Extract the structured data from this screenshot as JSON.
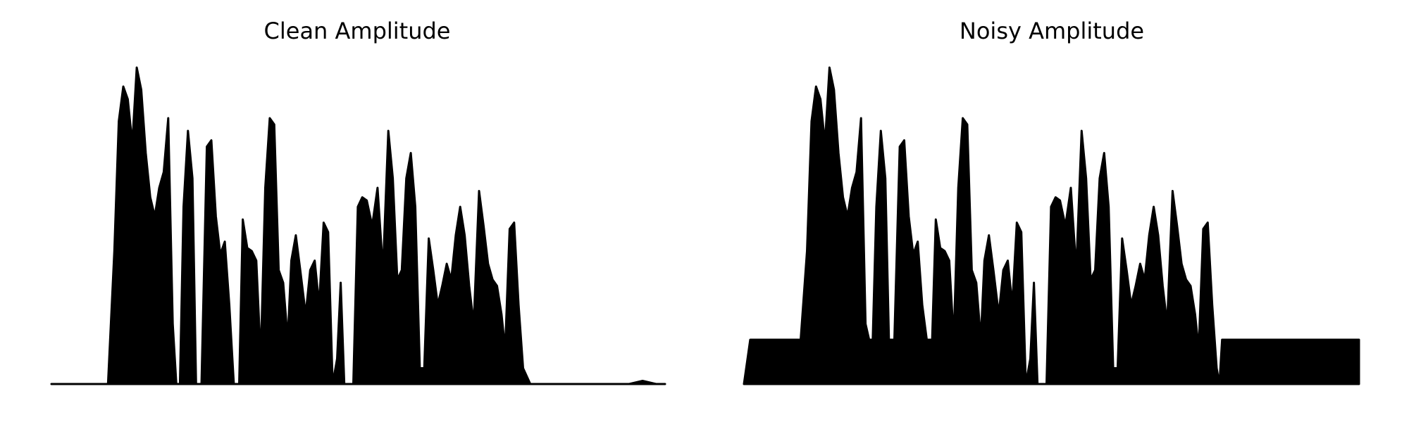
{
  "chart_data": [
    {
      "type": "area",
      "title": "Clean Amplitude",
      "color": "#000000",
      "xlim": [
        0,
        683
      ],
      "ylim": [
        0,
        1
      ],
      "x": [
        0,
        63,
        70,
        75,
        80,
        85,
        90,
        95,
        100,
        105,
        110,
        115,
        120,
        125,
        130,
        135,
        139,
        143,
        147,
        152,
        157,
        161,
        167,
        173,
        178,
        183,
        188,
        193,
        198,
        203,
        209,
        213,
        218,
        223,
        228,
        233,
        238,
        243,
        248,
        253,
        258,
        263,
        267,
        272,
        277,
        283,
        288,
        293,
        298,
        303,
        308,
        313,
        318,
        322,
        326,
        336,
        341,
        346,
        351,
        357,
        363,
        369,
        375,
        380,
        385,
        390,
        395,
        400,
        405,
        410,
        415,
        420,
        425,
        430,
        435,
        440,
        445,
        450,
        455,
        460,
        465,
        470,
        476,
        481,
        486,
        491,
        496,
        501,
        505,
        510,
        515,
        520,
        525,
        533,
        643,
        658,
        673,
        683
      ],
      "values": [
        0,
        0,
        0.42,
        0.83,
        0.94,
        0.9,
        0.76,
        1.0,
        0.93,
        0.73,
        0.59,
        0.53,
        0.62,
        0.67,
        0.84,
        0.19,
        0,
        0,
        0.56,
        0.8,
        0.65,
        0,
        0,
        0.75,
        0.77,
        0.53,
        0.41,
        0.45,
        0.25,
        0,
        0,
        0.52,
        0.43,
        0.42,
        0.39,
        0.08,
        0.62,
        0.84,
        0.82,
        0.36,
        0.32,
        0.14,
        0.39,
        0.47,
        0.36,
        0.22,
        0.36,
        0.39,
        0.25,
        0.51,
        0.48,
        0,
        0.08,
        0.32,
        0,
        0,
        0.56,
        0.59,
        0.58,
        0.5,
        0.62,
        0.36,
        0.8,
        0.65,
        0.33,
        0.36,
        0.65,
        0.73,
        0.56,
        0.05,
        0.05,
        0.46,
        0.36,
        0.25,
        0.31,
        0.38,
        0.33,
        0.47,
        0.56,
        0.47,
        0.31,
        0.19,
        0.61,
        0.5,
        0.38,
        0.33,
        0.31,
        0.22,
        0.11,
        0.49,
        0.51,
        0.25,
        0.05,
        0,
        0,
        0.01,
        0,
        0
      ]
    },
    {
      "type": "area",
      "title": "Noisy Amplitude",
      "color": "#000000",
      "xlim": [
        0,
        683
      ],
      "ylim": [
        0,
        1
      ],
      "x": [
        0,
        7,
        63,
        70,
        75,
        80,
        85,
        90,
        95,
        100,
        105,
        110,
        115,
        120,
        125,
        130,
        135,
        139,
        143,
        147,
        152,
        157,
        161,
        167,
        173,
        178,
        183,
        188,
        193,
        198,
        203,
        209,
        213,
        218,
        223,
        228,
        233,
        238,
        243,
        248,
        253,
        258,
        263,
        267,
        272,
        277,
        283,
        288,
        293,
        298,
        303,
        308,
        313,
        318,
        322,
        326,
        336,
        341,
        346,
        351,
        357,
        363,
        369,
        375,
        380,
        385,
        390,
        395,
        400,
        405,
        410,
        415,
        420,
        425,
        430,
        435,
        440,
        445,
        450,
        455,
        460,
        465,
        470,
        476,
        481,
        486,
        491,
        496,
        501,
        505,
        510,
        515,
        520,
        525,
        528,
        531,
        683
      ],
      "values": [
        0,
        0.14,
        0.14,
        0.42,
        0.83,
        0.94,
        0.9,
        0.76,
        1.0,
        0.93,
        0.73,
        0.59,
        0.53,
        0.62,
        0.67,
        0.84,
        0.19,
        0.14,
        0.14,
        0.56,
        0.8,
        0.65,
        0.14,
        0.14,
        0.75,
        0.77,
        0.53,
        0.41,
        0.45,
        0.25,
        0.14,
        0.14,
        0.52,
        0.43,
        0.42,
        0.39,
        0.14,
        0.62,
        0.84,
        0.82,
        0.36,
        0.32,
        0.14,
        0.39,
        0.47,
        0.36,
        0.22,
        0.36,
        0.39,
        0.25,
        0.51,
        0.48,
        0,
        0.08,
        0.32,
        0,
        0,
        0.56,
        0.59,
        0.58,
        0.5,
        0.62,
        0.36,
        0.8,
        0.65,
        0.33,
        0.36,
        0.65,
        0.73,
        0.56,
        0.05,
        0.05,
        0.46,
        0.36,
        0.25,
        0.31,
        0.38,
        0.33,
        0.47,
        0.56,
        0.47,
        0.31,
        0.19,
        0.61,
        0.5,
        0.38,
        0.33,
        0.31,
        0.22,
        0.11,
        0.49,
        0.51,
        0.25,
        0.05,
        0,
        0.14,
        0.14
      ]
    }
  ]
}
